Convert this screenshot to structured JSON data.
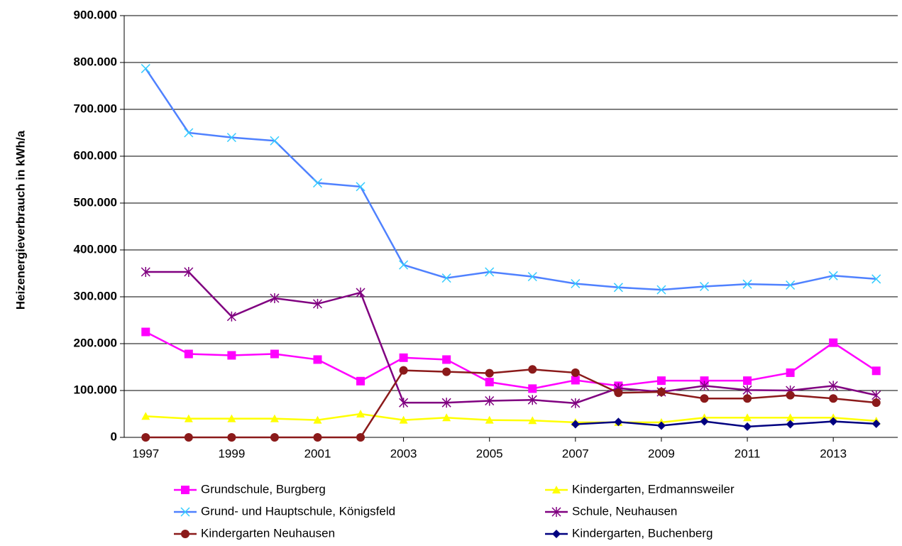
{
  "chart_data": {
    "type": "line",
    "y_label": "Heizenergieverbrauch  in  kWh/a",
    "x": [
      1997,
      1998,
      1999,
      2000,
      2001,
      2002,
      2003,
      2004,
      2005,
      2006,
      2007,
      2008,
      2009,
      2010,
      2011,
      2012,
      2013,
      2014
    ],
    "xlim": [
      1996.5,
      2014.5
    ],
    "xticks": [
      1997,
      1999,
      2001,
      2003,
      2005,
      2007,
      2009,
      2011,
      2013
    ],
    "ylim": [
      0,
      900000
    ],
    "yticks": [
      0,
      {
        "value": 100000,
        "label": "100.000"
      },
      {
        "value": 200000,
        "label": "200.000"
      },
      {
        "value": 300000,
        "label": "300.000"
      },
      {
        "value": 400000,
        "label": "400.000"
      },
      {
        "value": 500000,
        "label": "500.000"
      },
      {
        "value": 600000,
        "label": "600.000"
      },
      {
        "value": 700000,
        "label": "700.000"
      },
      {
        "value": 800000,
        "label": "800.000"
      },
      {
        "value": 900000,
        "label": "900.000"
      }
    ],
    "grid": true,
    "legend": "bottom",
    "series": [
      {
        "name": "Grundschule, Burgberg",
        "color": "#ff00ff",
        "marker": "square",
        "values": [
          225000,
          178000,
          175000,
          178000,
          166000,
          120000,
          170000,
          166000,
          118000,
          104000,
          122000,
          110000,
          121000,
          121000,
          121000,
          138000,
          202000,
          142000
        ]
      },
      {
        "name": "Kindergarten, Erdmannsweiler",
        "color": "#ffff00",
        "marker": "triangle",
        "values": [
          45000,
          40000,
          40000,
          40000,
          37000,
          50000,
          37000,
          42000,
          37000,
          36000,
          32000,
          32000,
          32000,
          42000,
          42000,
          42000,
          42000,
          35000
        ]
      },
      {
        "name": "Grund- und Hauptschule, Königsfeld",
        "color": "#4f81ff",
        "marker_color": "#33ccff",
        "marker": "x",
        "values": [
          787000,
          650000,
          640000,
          633000,
          543000,
          535000,
          368000,
          340000,
          353000,
          343000,
          328000,
          320000,
          315000,
          322000,
          327000,
          325000,
          345000,
          338000
        ]
      },
      {
        "name": "Schule, Neuhausen",
        "color": "#800080",
        "marker": "star",
        "values": [
          353000,
          353000,
          258000,
          297000,
          285000,
          309000,
          74000,
          74000,
          78000,
          80000,
          73000,
          105000,
          97000,
          110000,
          101000,
          100000,
          110000,
          90000
        ]
      },
      {
        "name": "Kindergarten Neuhausen",
        "color": "#8b1a1a",
        "marker": "circle",
        "values": [
          0,
          0,
          0,
          0,
          0,
          0,
          143000,
          140000,
          137000,
          145000,
          138000,
          95000,
          97000,
          83000,
          83000,
          90000,
          83000,
          74000
        ]
      },
      {
        "name": "Kindergarten, Buchenberg",
        "color": "#000080",
        "marker": "diamond",
        "values": [
          null,
          null,
          null,
          null,
          null,
          null,
          null,
          null,
          null,
          null,
          28000,
          33000,
          25000,
          34000,
          23000,
          28000,
          34000,
          29000
        ]
      }
    ]
  }
}
